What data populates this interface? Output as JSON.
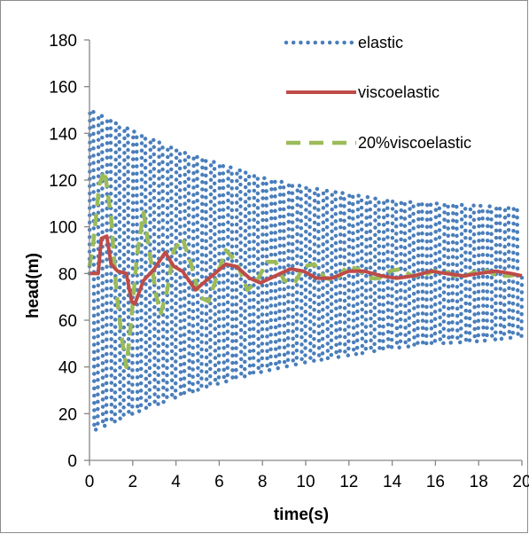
{
  "chart_data": {
    "type": "line",
    "title": "",
    "xlabel": "time(s)",
    "ylabel": "head(m)",
    "xlim": [
      0,
      20
    ],
    "ylim": [
      0,
      180
    ],
    "x_ticks": [
      "0",
      "2",
      "4",
      "6",
      "8",
      "10",
      "12",
      "14",
      "16",
      "18",
      "20"
    ],
    "y_ticks": [
      "0",
      "20",
      "40",
      "60",
      "80",
      "100",
      "120",
      "140",
      "160",
      "180"
    ],
    "grid": false,
    "legend_position": "top-right",
    "series": [
      {
        "name": "elastic",
        "color": "#4a7ebb",
        "style": "dotted",
        "envelope_upper": [
          [
            0.0,
            150
          ],
          [
            2.0,
            141
          ],
          [
            4.0,
            133
          ],
          [
            6.0,
            127
          ],
          [
            8.0,
            121
          ],
          [
            10.0,
            117
          ],
          [
            12.0,
            114
          ],
          [
            14.0,
            111
          ],
          [
            16.0,
            110
          ],
          [
            18.0,
            109
          ],
          [
            20.0,
            108
          ]
        ],
        "envelope_lower": [
          [
            0.0,
            12
          ],
          [
            2.0,
            20
          ],
          [
            4.0,
            27
          ],
          [
            6.0,
            33
          ],
          [
            8.0,
            38
          ],
          [
            10.0,
            42
          ],
          [
            12.0,
            45
          ],
          [
            14.0,
            48
          ],
          [
            16.0,
            50
          ],
          [
            18.0,
            51
          ],
          [
            20.0,
            53
          ]
        ],
        "oscillation_period_s": 0.4,
        "mean": 80
      },
      {
        "name": "viscoelastic",
        "color": "#be4b48",
        "style": "solid",
        "points": [
          [
            0.0,
            80
          ],
          [
            0.4,
            80
          ],
          [
            0.55,
            95
          ],
          [
            0.8,
            96
          ],
          [
            1.0,
            84
          ],
          [
            1.3,
            81
          ],
          [
            1.7,
            80
          ],
          [
            1.95,
            68
          ],
          [
            2.1,
            67
          ],
          [
            2.5,
            77
          ],
          [
            3.0,
            82
          ],
          [
            3.5,
            89
          ],
          [
            3.9,
            83
          ],
          [
            4.3,
            81
          ],
          [
            4.9,
            73
          ],
          [
            5.4,
            77
          ],
          [
            5.8,
            80
          ],
          [
            6.3,
            84
          ],
          [
            6.8,
            83
          ],
          [
            7.4,
            78
          ],
          [
            7.9,
            76
          ],
          [
            8.6,
            79
          ],
          [
            9.3,
            82
          ],
          [
            9.9,
            81
          ],
          [
            10.5,
            78
          ],
          [
            11.2,
            78
          ],
          [
            12.0,
            81
          ],
          [
            12.7,
            81
          ],
          [
            13.5,
            79
          ],
          [
            14.2,
            78
          ],
          [
            15.0,
            79
          ],
          [
            15.8,
            81
          ],
          [
            16.5,
            80
          ],
          [
            17.3,
            79
          ],
          [
            18.0,
            80
          ],
          [
            18.8,
            81
          ],
          [
            19.5,
            80
          ],
          [
            20.0,
            79
          ]
        ]
      },
      {
        "name": "20%viscoelastic",
        "color": "#9bbb59",
        "style": "dashed",
        "points": [
          [
            0.0,
            83
          ],
          [
            0.2,
            95
          ],
          [
            0.45,
            118
          ],
          [
            0.7,
            124
          ],
          [
            1.0,
            104
          ],
          [
            1.25,
            72
          ],
          [
            1.5,
            52
          ],
          [
            1.7,
            40
          ],
          [
            1.9,
            57
          ],
          [
            2.2,
            88
          ],
          [
            2.5,
            106
          ],
          [
            2.8,
            88
          ],
          [
            3.1,
            70
          ],
          [
            3.3,
            63
          ],
          [
            3.6,
            73
          ],
          [
            3.9,
            90
          ],
          [
            4.3,
            95
          ],
          [
            4.7,
            84
          ],
          [
            5.1,
            70
          ],
          [
            5.5,
            68
          ],
          [
            5.9,
            79
          ],
          [
            6.3,
            90
          ],
          [
            6.8,
            85
          ],
          [
            7.3,
            73
          ],
          [
            7.7,
            76
          ],
          [
            8.2,
            85
          ],
          [
            8.6,
            85
          ],
          [
            9.0,
            77
          ],
          [
            9.5,
            76
          ],
          [
            9.9,
            83
          ],
          [
            10.4,
            84
          ],
          [
            10.9,
            78
          ],
          [
            11.4,
            77
          ],
          [
            11.9,
            83
          ],
          [
            12.4,
            82
          ],
          [
            12.9,
            78
          ],
          [
            13.4,
            78
          ],
          [
            13.9,
            81
          ],
          [
            14.4,
            82
          ],
          [
            14.9,
            79
          ],
          [
            15.4,
            79
          ],
          [
            15.9,
            81
          ],
          [
            16.4,
            81
          ],
          [
            16.9,
            79
          ],
          [
            17.4,
            79
          ],
          [
            17.9,
            81
          ],
          [
            18.4,
            81
          ],
          [
            18.9,
            79
          ],
          [
            19.4,
            79
          ],
          [
            20.0,
            80
          ]
        ]
      }
    ]
  }
}
